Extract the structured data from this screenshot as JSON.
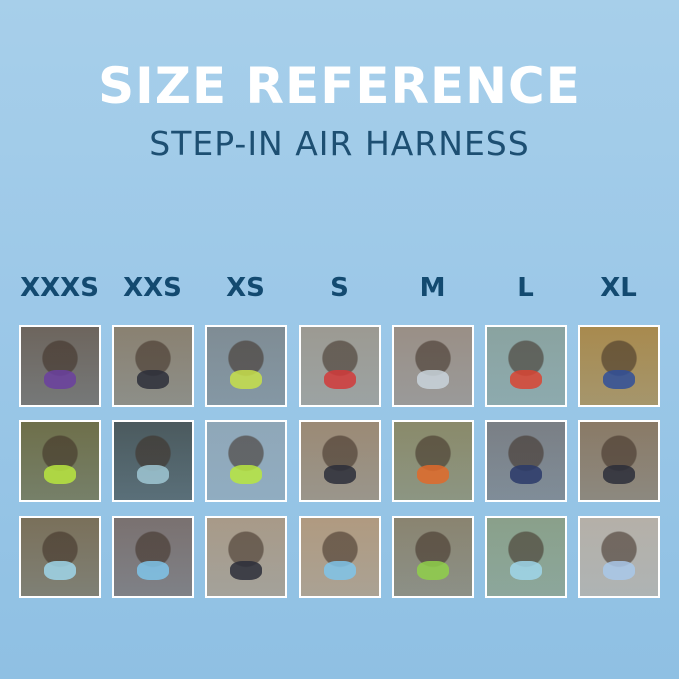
{
  "header": {
    "title": "SIZE REFERENCE",
    "subtitle": "STEP-IN AIR HARNESS"
  },
  "sizes": [
    "XXXS",
    "XXS",
    "XS",
    "S",
    "M",
    "L",
    "XL"
  ],
  "colors": {
    "title": "#ffffff",
    "subtitle": "#1d4f72",
    "size_label": "#134a70",
    "background": "#9cc8e8"
  },
  "photos": [
    [
      {
        "bg": "#6d655d",
        "harness": "#6b3fa0"
      },
      {
        "bg": "#8a8171",
        "harness": "#2b2e3a"
      },
      {
        "bg": "#7f8c94",
        "harness": "#c8e04a"
      },
      {
        "bg": "#9c9a92",
        "harness": "#d23a3a"
      },
      {
        "bg": "#9a8f86",
        "harness": "#c9d3dc"
      },
      {
        "bg": "#8aa3a0",
        "harness": "#d94433"
      },
      {
        "bg": "#a88a4e",
        "harness": "#2f4f9a"
      }
    ],
    [
      {
        "bg": "#6e6f4a",
        "harness": "#b8e640"
      },
      {
        "bg": "#4b5a5e",
        "harness": "#9fc7d4"
      },
      {
        "bg": "#8fa7b8",
        "harness": "#b8e640"
      },
      {
        "bg": "#9b8a75",
        "harness": "#2b2e3a"
      },
      {
        "bg": "#8a8a6a",
        "harness": "#e06a2a"
      },
      {
        "bg": "#7a7f85",
        "harness": "#2a3a6a"
      },
      {
        "bg": "#8a7a66",
        "harness": "#2b2e3a"
      }
    ],
    [
      {
        "bg": "#7a705a",
        "harness": "#9fd6ea"
      },
      {
        "bg": "#7a7170",
        "harness": "#7fc4ea"
      },
      {
        "bg": "#a89a88",
        "harness": "#2b2e3a"
      },
      {
        "bg": "#b09a80",
        "harness": "#7fc4ea"
      },
      {
        "bg": "#8a8470",
        "harness": "#8fd04a"
      },
      {
        "bg": "#8aa08a",
        "harness": "#9fd6ea"
      },
      {
        "bg": "#b5b0a8",
        "harness": "#a9c8ea"
      }
    ]
  ]
}
